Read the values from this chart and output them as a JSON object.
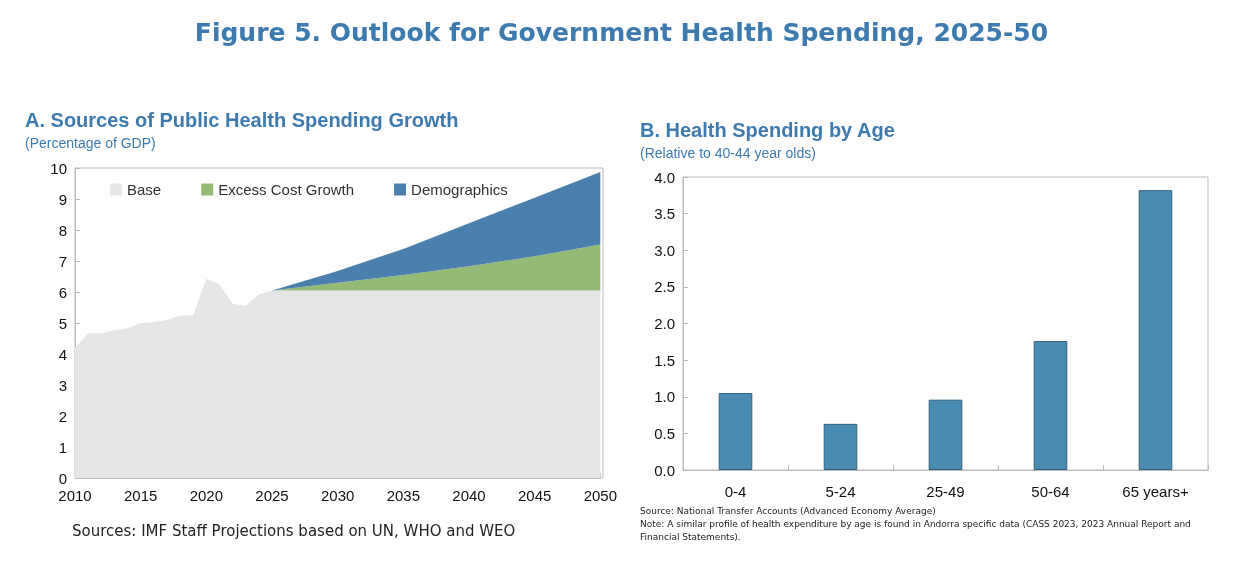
{
  "chart_data": [
    {
      "type": "area",
      "title": "A. Sources of Public Health Spending Growth",
      "subtitle": "(Percentage of GDP)",
      "annotations": [
        "Figure 5. Outlook for Government Health Spending, 2025-50",
        "Sources: IMF Staff Projections based on UN, WHO and WEO"
      ],
      "x": [
        2010,
        2011,
        2012,
        2013,
        2014,
        2015,
        2016,
        2017,
        2018,
        2019,
        2020,
        2021,
        2022,
        2023,
        2024,
        2025,
        2030,
        2035,
        2040,
        2045,
        2050
      ],
      "series": [
        {
          "name": "Base",
          "color": "#e6e6e6",
          "values": [
            4.2,
            4.67,
            4.67,
            4.77,
            4.83,
            5.0,
            5.03,
            5.1,
            5.23,
            5.25,
            6.43,
            6.24,
            5.62,
            5.55,
            5.93,
            6.05,
            6.05,
            6.05,
            6.05,
            6.05,
            6.05
          ]
        },
        {
          "name": "Excess Cost Growth",
          "color": "#93bb76",
          "values": [
            null,
            null,
            null,
            null,
            null,
            null,
            null,
            null,
            null,
            null,
            null,
            null,
            null,
            null,
            null,
            0,
            0.25,
            0.5,
            0.78,
            1.1,
            1.48
          ]
        },
        {
          "name": "Demographics",
          "color": "#4a7fae",
          "values": [
            null,
            null,
            null,
            null,
            null,
            null,
            null,
            null,
            null,
            null,
            null,
            null,
            null,
            null,
            null,
            0,
            0.38,
            0.84,
            1.39,
            1.89,
            2.34
          ]
        }
      ],
      "stacked": true,
      "xlim": [
        2010,
        2050
      ],
      "xticks": [
        2010,
        2015,
        2020,
        2025,
        2030,
        2035,
        2040,
        2045,
        2050
      ],
      "ylim": [
        0,
        10
      ],
      "yticks": [
        0,
        1,
        2,
        3,
        4,
        5,
        6,
        7,
        8,
        9,
        10
      ],
      "grid": false,
      "legend": "top"
    },
    {
      "type": "bar",
      "title": "B. Health Spending by Age",
      "subtitle": "(Relative to 40-44 year olds)",
      "annotations": [
        "Source: National Transfer Accounts (Advanced Economy Average)",
        "Note: A similar profile of health expenditure by age is found in Andorra specific data (CASS 2023, 2023 Annual Report and Financial Statements)."
      ],
      "categories": [
        "0-4",
        "5-24",
        "25-49",
        "50-64",
        "65 years+"
      ],
      "values": [
        1.05,
        0.63,
        0.96,
        1.76,
        3.82
      ],
      "color": "#4a8cb1",
      "ylim": [
        0,
        4
      ],
      "yticks": [
        {
          "value": 0,
          "label": "0.0"
        },
        {
          "value": 0.5,
          "label": "0.5"
        },
        {
          "value": 1,
          "label": "1.0"
        },
        {
          "value": 1.5,
          "label": "1.5"
        },
        {
          "value": 2,
          "label": "2.0"
        },
        {
          "value": 2.5,
          "label": "2.5"
        },
        {
          "value": 3,
          "label": "3.0"
        },
        {
          "value": 3.5,
          "label": "3.5"
        },
        {
          "value": 4,
          "label": "4.0"
        }
      ],
      "grid": false,
      "legend": false
    }
  ]
}
